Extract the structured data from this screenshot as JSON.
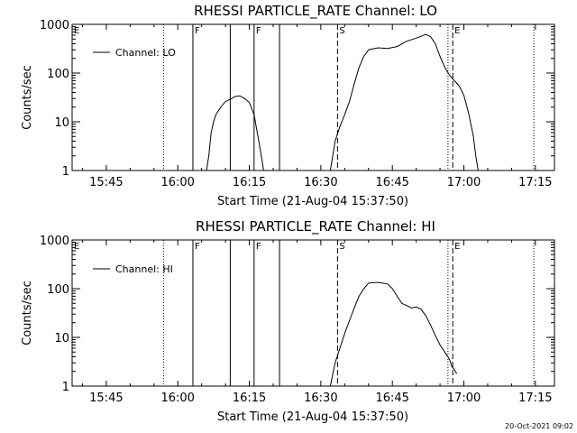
{
  "stamp": "20-Oct-2021 09:02",
  "chart_data": [
    {
      "type": "line",
      "title": "RHESSI PARTICLE_RATE Channel: LO",
      "xlabel": "Start Time (21-Aug-04 15:37:50)",
      "ylabel": "Counts/sec",
      "yscale": "log",
      "ylim": [
        1,
        1000
      ],
      "xlim": [
        "15:37:50",
        "17:19:00"
      ],
      "xticks": [
        "15:45",
        "16:00",
        "16:15",
        "16:30",
        "16:45",
        "17:00",
        "17:15"
      ],
      "yticks": [
        "1",
        "10",
        "100",
        "1000"
      ],
      "legend": {
        "position": "top-left",
        "entries": [
          "Channel: LO"
        ]
      },
      "series": [
        {
          "name": "Channel: LO",
          "x": [
            "16:06:00",
            "16:06:30",
            "16:07:00",
            "16:07:30",
            "16:08:00",
            "16:09:00",
            "16:10:00",
            "16:11:00",
            "16:12:00",
            "16:13:00",
            "16:14:00",
            "16:15:00",
            "16:16:00",
            "16:17:00",
            "16:17:30",
            "16:18:00",
            "16:32:00",
            "16:32:30",
            "16:33:00",
            "16:34:00",
            "16:35:00",
            "16:36:00",
            "16:37:00",
            "16:38:00",
            "16:39:00",
            "16:40:00",
            "16:42:00",
            "16:44:00",
            "16:46:00",
            "16:48:00",
            "16:50:00",
            "16:52:00",
            "16:53:00",
            "16:54:00",
            "16:55:00",
            "16:56:00",
            "16:57:00",
            "16:58:00",
            "16:59:00",
            "17:00:00",
            "17:01:00",
            "17:02:00",
            "17:02:30",
            "17:03:00"
          ],
          "y": [
            1,
            2,
            6,
            10,
            14,
            20,
            26,
            29,
            33,
            34,
            30,
            25,
            14,
            4,
            2,
            1,
            1,
            2,
            4,
            8,
            14,
            26,
            60,
            130,
            220,
            300,
            330,
            320,
            350,
            450,
            520,
            620,
            560,
            400,
            220,
            130,
            90,
            70,
            55,
            35,
            15,
            5,
            2,
            1
          ]
        }
      ],
      "vlines": [
        {
          "x": "15:57:00",
          "style": "dotted",
          "label": ""
        },
        {
          "x": "16:03:10",
          "style": "solid",
          "label": "F"
        },
        {
          "x": "16:11:00",
          "style": "solid",
          "label": ""
        },
        {
          "x": "16:16:00",
          "style": "solid",
          "label": "F"
        },
        {
          "x": "16:21:20",
          "style": "solid",
          "label": ""
        },
        {
          "x": "16:33:30",
          "style": "dashed",
          "label": "S"
        },
        {
          "x": "16:56:40",
          "style": "dotted",
          "label": ""
        },
        {
          "x": "16:57:40",
          "style": "dashed",
          "label": "E"
        },
        {
          "x": "17:14:40",
          "style": "dotted",
          "label": ""
        }
      ],
      "corner_marker": "E"
    },
    {
      "type": "line",
      "title": "RHESSI PARTICLE_RATE Channel: HI",
      "xlabel": "Start Time (21-Aug-04 15:37:50)",
      "ylabel": "Counts/sec",
      "yscale": "log",
      "ylim": [
        1,
        1000
      ],
      "xlim": [
        "15:37:50",
        "17:19:00"
      ],
      "xticks": [
        "15:45",
        "16:00",
        "16:15",
        "16:30",
        "16:45",
        "17:00",
        "17:15"
      ],
      "yticks": [
        "1",
        "10",
        "100",
        "1000"
      ],
      "legend": {
        "position": "top-left",
        "entries": [
          "Channel: HI"
        ]
      },
      "series": [
        {
          "name": "Channel: HI",
          "x": [
            "16:32:00",
            "16:33:00",
            "16:34:00",
            "16:35:00",
            "16:36:00",
            "16:37:00",
            "16:38:00",
            "16:39:00",
            "16:40:00",
            "16:42:00",
            "16:44:00",
            "16:45:00",
            "16:46:00",
            "16:47:00",
            "16:48:00",
            "16:49:00",
            "16:50:00",
            "16:51:00",
            "16:52:00",
            "16:53:00",
            "16:54:00",
            "16:55:00",
            "16:56:00",
            "16:57:00",
            "16:57:30",
            "16:58:00",
            "16:58:30"
          ],
          "y": [
            1,
            3,
            6,
            12,
            22,
            40,
            70,
            100,
            130,
            135,
            125,
            100,
            70,
            50,
            45,
            40,
            42,
            38,
            28,
            18,
            11,
            7,
            5,
            3.5,
            2.5,
            2.2,
            1.8
          ]
        }
      ],
      "vlines": [
        {
          "x": "15:57:00",
          "style": "dotted",
          "label": ""
        },
        {
          "x": "16:03:10",
          "style": "solid",
          "label": "F"
        },
        {
          "x": "16:11:00",
          "style": "solid",
          "label": ""
        },
        {
          "x": "16:16:00",
          "style": "solid",
          "label": "F"
        },
        {
          "x": "16:21:20",
          "style": "solid",
          "label": ""
        },
        {
          "x": "16:33:30",
          "style": "dashed",
          "label": "S"
        },
        {
          "x": "16:56:40",
          "style": "dotted",
          "label": ""
        },
        {
          "x": "16:57:40",
          "style": "dashed",
          "label": "E"
        },
        {
          "x": "17:14:40",
          "style": "dotted",
          "label": ""
        }
      ],
      "corner_marker": "E"
    }
  ]
}
